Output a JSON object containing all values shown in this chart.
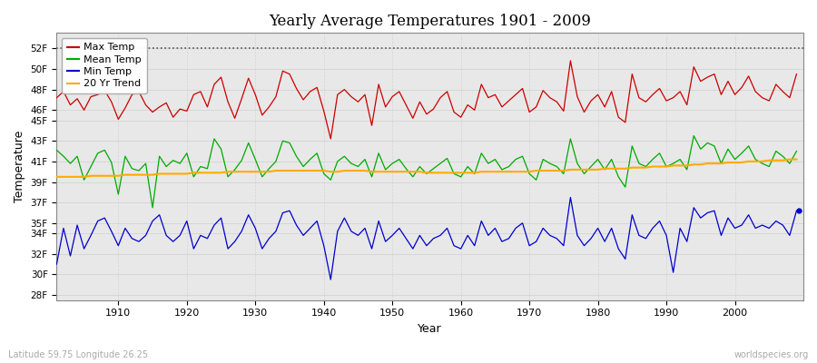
{
  "title": "Yearly Average Temperatures 1901 - 2009",
  "xlabel": "Year",
  "ylabel": "Temperature",
  "start_year": 1901,
  "end_year": 2009,
  "ylim": [
    27.5,
    53.5
  ],
  "xlim": [
    1901,
    2010
  ],
  "colors": {
    "max_temp": "#cc0000",
    "mean_temp": "#00aa00",
    "min_temp": "#0000cc",
    "trend": "#ffaa00",
    "background": "#e8e8e8",
    "dotted_line": "#555555"
  },
  "legend_labels": [
    "Max Temp",
    "Mean Temp",
    "Min Temp",
    "20 Yr Trend"
  ],
  "subtitle_left": "Latitude 59.75 Longitude 26.25",
  "subtitle_right": "worldspecies.org",
  "max_temps": [
    47.2,
    47.8,
    46.5,
    47.1,
    46.0,
    47.3,
    47.5,
    47.9,
    46.8,
    45.1,
    46.2,
    47.5,
    47.8,
    46.5,
    45.8,
    46.3,
    46.7,
    45.3,
    46.1,
    45.9,
    47.5,
    47.8,
    46.3,
    48.5,
    49.2,
    46.8,
    45.2,
    47.1,
    49.1,
    47.5,
    45.5,
    46.3,
    47.3,
    49.8,
    49.5,
    48.1,
    47.0,
    47.8,
    48.2,
    45.9,
    43.2,
    47.5,
    48.0,
    47.3,
    46.8,
    47.5,
    44.5,
    48.5,
    46.3,
    47.3,
    47.8,
    46.5,
    45.2,
    46.8,
    45.6,
    46.1,
    47.2,
    47.8,
    45.8,
    45.3,
    46.5,
    46.0,
    48.5,
    47.2,
    47.5,
    46.3,
    46.9,
    47.5,
    48.1,
    45.8,
    46.3,
    47.9,
    47.2,
    46.8,
    45.9,
    50.8,
    47.3,
    45.8,
    46.9,
    47.5,
    46.3,
    47.8,
    45.3,
    44.8,
    49.5,
    47.2,
    46.8,
    47.5,
    48.1,
    46.9,
    47.2,
    47.8,
    46.5,
    50.2,
    48.8,
    49.2,
    49.5,
    47.5,
    48.8,
    47.5,
    48.2,
    49.3,
    47.8,
    47.2,
    46.9,
    48.5,
    47.8,
    47.2,
    49.5
  ],
  "mean_temps": [
    42.1,
    41.5,
    40.8,
    41.5,
    39.2,
    40.5,
    41.8,
    42.1,
    40.9,
    37.8,
    41.5,
    40.3,
    40.1,
    40.8,
    36.5,
    41.5,
    40.5,
    41.1,
    40.8,
    41.8,
    39.5,
    40.5,
    40.3,
    43.2,
    42.2,
    39.5,
    40.2,
    41.1,
    42.8,
    41.2,
    39.5,
    40.3,
    41.0,
    43.0,
    42.8,
    41.5,
    40.5,
    41.2,
    41.8,
    39.8,
    39.2,
    41.0,
    41.5,
    40.8,
    40.5,
    41.2,
    39.5,
    41.8,
    40.2,
    40.8,
    41.2,
    40.3,
    39.5,
    40.5,
    39.8,
    40.3,
    40.8,
    41.3,
    39.8,
    39.5,
    40.5,
    39.8,
    41.8,
    40.8,
    41.2,
    40.2,
    40.5,
    41.2,
    41.5,
    39.8,
    39.2,
    41.2,
    40.8,
    40.5,
    39.8,
    43.2,
    40.8,
    39.8,
    40.5,
    41.2,
    40.2,
    41.2,
    39.5,
    38.5,
    42.5,
    40.8,
    40.5,
    41.2,
    41.8,
    40.5,
    40.8,
    41.2,
    40.2,
    43.5,
    42.2,
    42.8,
    42.5,
    40.8,
    42.2,
    41.2,
    41.8,
    42.5,
    41.2,
    40.8,
    40.5,
    42.0,
    41.5,
    40.8,
    42.0
  ],
  "min_temps": [
    31.0,
    34.5,
    31.8,
    34.8,
    32.5,
    33.8,
    35.2,
    35.5,
    34.2,
    32.8,
    34.5,
    33.5,
    33.2,
    33.8,
    35.2,
    35.8,
    33.8,
    33.2,
    33.8,
    35.2,
    32.5,
    33.8,
    33.5,
    34.8,
    35.5,
    32.5,
    33.2,
    34.2,
    35.8,
    34.5,
    32.5,
    33.5,
    34.2,
    36.0,
    36.2,
    34.8,
    33.8,
    34.5,
    35.2,
    32.8,
    29.5,
    34.2,
    35.5,
    34.2,
    33.8,
    34.5,
    32.5,
    35.2,
    33.2,
    33.8,
    34.5,
    33.5,
    32.5,
    33.8,
    32.8,
    33.5,
    33.8,
    34.5,
    32.8,
    32.5,
    33.8,
    32.8,
    35.2,
    33.8,
    34.5,
    33.2,
    33.5,
    34.5,
    35.0,
    32.8,
    33.2,
    34.5,
    33.8,
    33.5,
    32.8,
    37.5,
    33.8,
    32.8,
    33.5,
    34.5,
    33.2,
    34.5,
    32.5,
    31.5,
    35.8,
    33.8,
    33.5,
    34.5,
    35.2,
    33.8,
    30.2,
    34.5,
    33.2,
    36.5,
    35.5,
    36.0,
    36.2,
    33.8,
    35.5,
    34.5,
    34.8,
    35.8,
    34.5,
    34.8,
    34.5,
    35.2,
    34.8,
    33.8,
    36.2
  ],
  "trend_temps": [
    39.5,
    39.5,
    39.5,
    39.5,
    39.5,
    39.6,
    39.6,
    39.6,
    39.6,
    39.6,
    39.7,
    39.7,
    39.7,
    39.7,
    39.7,
    39.8,
    39.8,
    39.8,
    39.8,
    39.8,
    39.9,
    39.9,
    39.9,
    39.9,
    39.9,
    40.0,
    40.0,
    40.0,
    40.0,
    40.0,
    40.0,
    40.0,
    40.1,
    40.1,
    40.1,
    40.1,
    40.1,
    40.1,
    40.1,
    40.1,
    40.0,
    40.0,
    40.1,
    40.1,
    40.1,
    40.1,
    40.0,
    40.0,
    40.0,
    40.0,
    40.0,
    40.0,
    40.0,
    40.0,
    39.9,
    39.9,
    39.9,
    39.9,
    39.9,
    39.9,
    39.9,
    39.9,
    40.0,
    40.0,
    40.0,
    40.0,
    40.0,
    40.0,
    40.0,
    40.0,
    40.1,
    40.1,
    40.1,
    40.1,
    40.1,
    40.2,
    40.2,
    40.2,
    40.2,
    40.2,
    40.3,
    40.3,
    40.3,
    40.3,
    40.4,
    40.4,
    40.4,
    40.5,
    40.5,
    40.5,
    40.6,
    40.6,
    40.6,
    40.7,
    40.7,
    40.8,
    40.8,
    40.8,
    40.9,
    40.9,
    40.9,
    41.0,
    41.0,
    41.0,
    41.1,
    41.1,
    41.1,
    41.2,
    41.2
  ]
}
